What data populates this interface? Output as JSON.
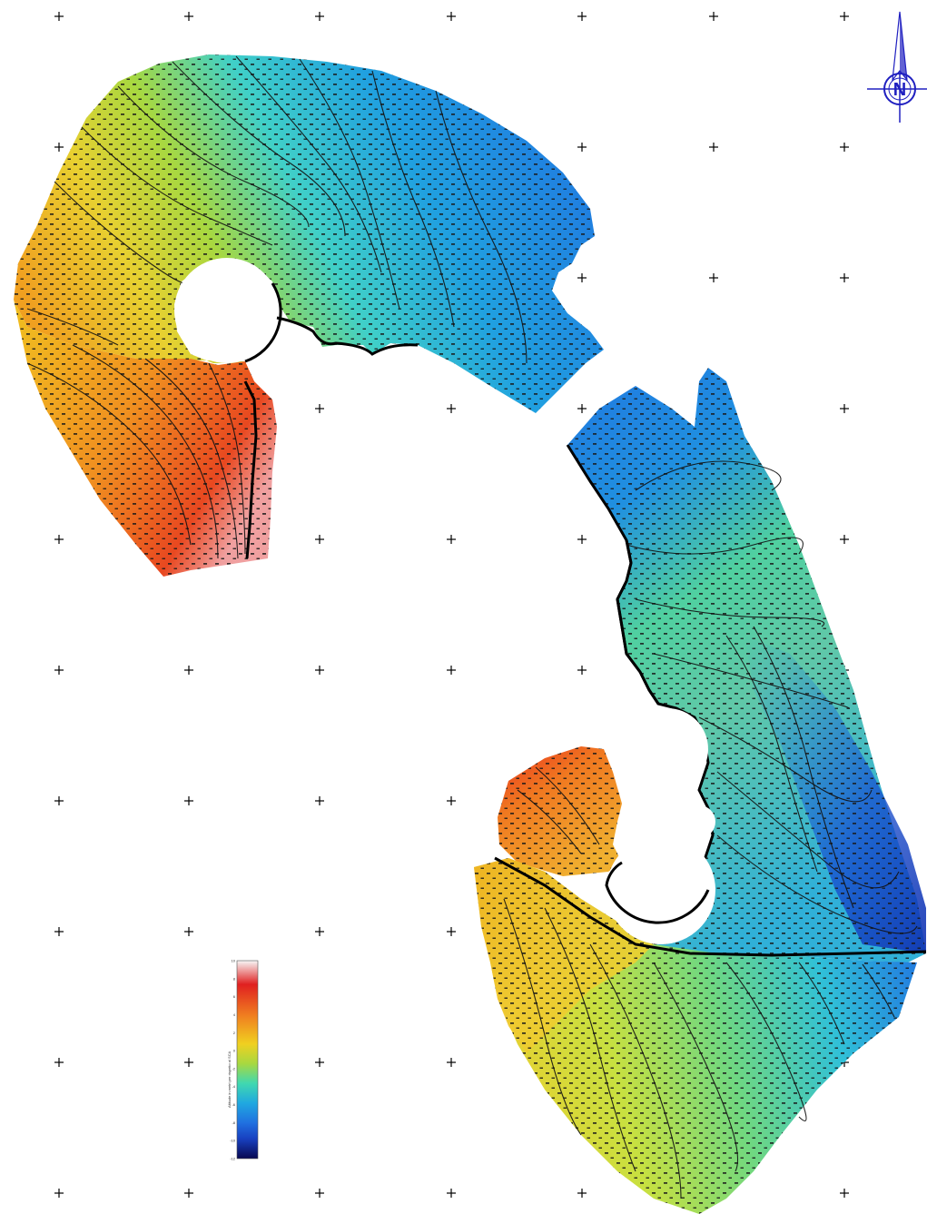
{
  "map": {
    "north_label": "N",
    "legend": {
      "title": "Altitude in metri per rispetto al SCA",
      "ticks": [
        "10",
        "8",
        "6",
        "4",
        "2",
        "0",
        "-2",
        "-4",
        "-6",
        "-8",
        "-10",
        "-12"
      ],
      "colors": [
        "#f7f7f7",
        "#e02020",
        "#f08020",
        "#f0d020",
        "#a8d840",
        "#40d8b0",
        "#20a8e0",
        "#2070e0",
        "#1840c0",
        "#101890",
        "#080850"
      ]
    },
    "colors": {
      "red": "#e03020",
      "orange": "#f09020",
      "yellow": "#e8e030",
      "green": "#90d040",
      "cyan": "#30d0d0",
      "blue": "#2080e0",
      "deep_blue": "#1038c0",
      "north_arrow": "#2020c0"
    }
  }
}
